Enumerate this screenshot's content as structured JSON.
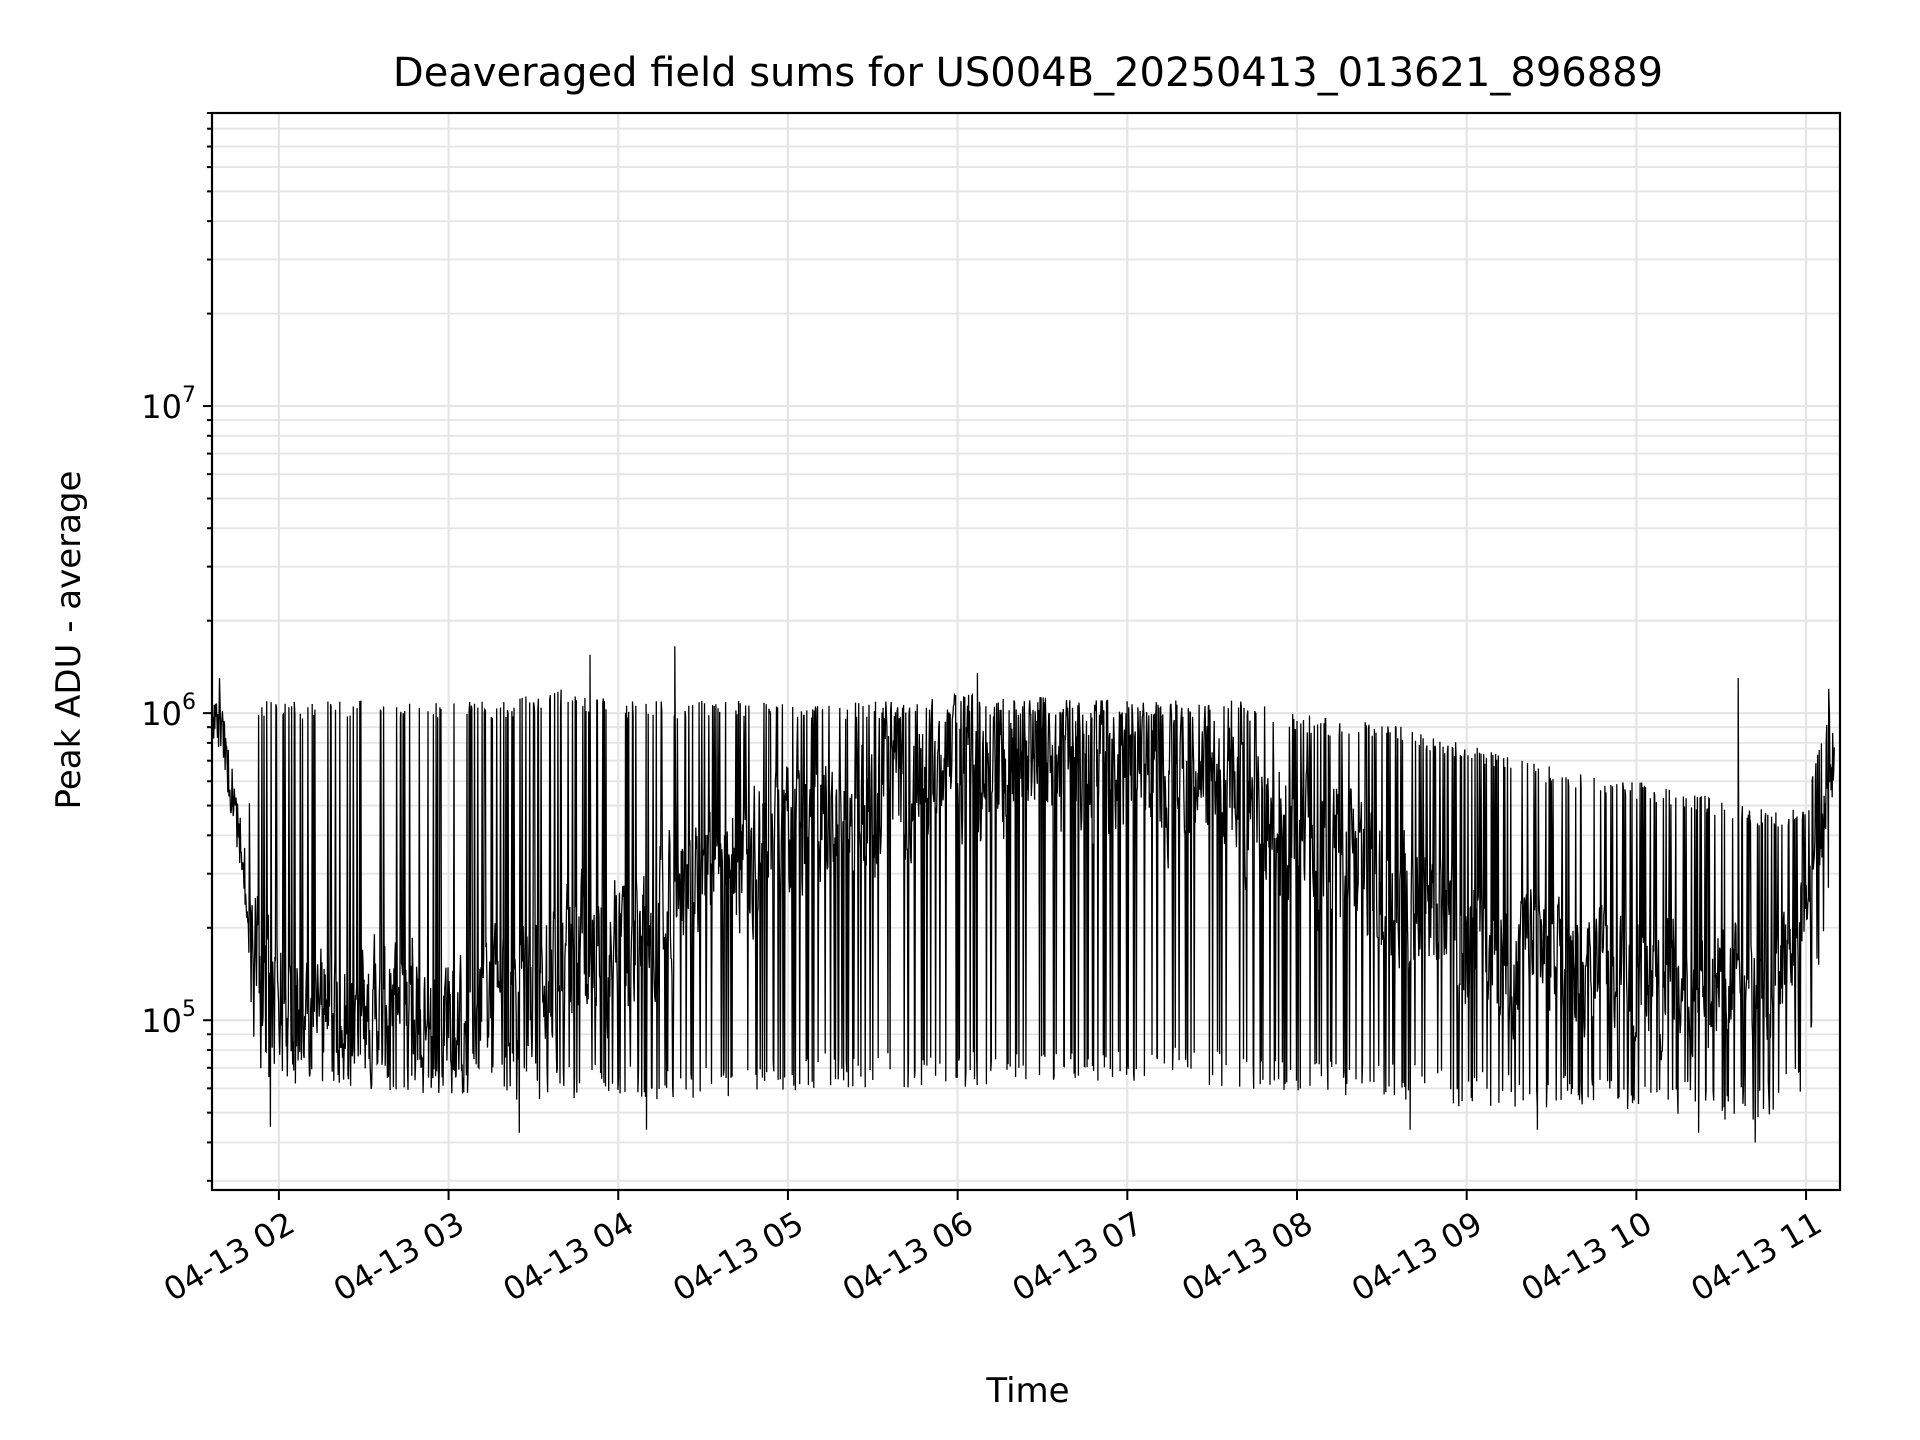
{
  "chart_data": {
    "type": "line",
    "title": "Deaveraged field sums for US004B_20250413_013621_896889",
    "xlabel": "Time",
    "ylabel": "Peak ADU - average",
    "yscale": "log",
    "ylim": [
      28000,
      90000000
    ],
    "xlim": [
      "2025-04-13 01:36:21",
      "2025-04-13 11:12:00"
    ],
    "x_ticks": [
      "2025-04-13 02:00",
      "2025-04-13 03:00",
      "2025-04-13 04:00",
      "2025-04-13 05:00",
      "2025-04-13 06:00",
      "2025-04-13 07:00",
      "2025-04-13 08:00",
      "2025-04-13 09:00",
      "2025-04-13 10:00",
      "2025-04-13 11:00"
    ],
    "x_tick_labels": [
      "04-13 02",
      "04-13 03",
      "04-13 04",
      "04-13 05",
      "04-13 06",
      "04-13 07",
      "04-13 08",
      "04-13 09",
      "04-13 10",
      "04-13 11"
    ],
    "y_ticks": [
      100000,
      1000000,
      10000000
    ],
    "y_tick_labels": [
      {
        "base": "10",
        "exp": "5"
      },
      {
        "base": "10",
        "exp": "6"
      },
      {
        "base": "10",
        "exp": "7"
      }
    ],
    "grid": true,
    "line_color": "#000000",
    "series": [
      {
        "x": [
          "2025-04-13 01:36",
          "2025-04-13 01:40",
          "2025-04-13 01:44",
          "2025-04-13 01:48",
          "2025-04-13 01:52",
          "2025-04-13 01:56",
          "2025-04-13 02:00",
          "2025-04-13 02:15",
          "2025-04-13 02:30",
          "2025-04-13 02:45",
          "2025-04-13 03:00",
          "2025-04-13 03:20",
          "2025-04-13 03:40",
          "2025-04-13 04:00",
          "2025-04-13 04:20",
          "2025-04-13 04:40",
          "2025-04-13 05:00",
          "2025-04-13 05:20",
          "2025-04-13 05:40",
          "2025-04-13 06:00",
          "2025-04-13 06:20",
          "2025-04-13 06:40",
          "2025-04-13 07:00",
          "2025-04-13 07:20",
          "2025-04-13 07:40",
          "2025-04-13 08:00",
          "2025-04-13 08:20",
          "2025-04-13 08:40",
          "2025-04-13 09:00",
          "2025-04-13 09:20",
          "2025-04-13 09:40",
          "2025-04-13 10:00",
          "2025-04-13 10:20",
          "2025-04-13 10:40",
          "2025-04-13 10:50",
          "2025-04-13 11:00",
          "2025-04-13 11:05",
          "2025-04-13 11:10"
        ],
        "base": [
          1000000,
          850000,
          500000,
          300000,
          170000,
          120000,
          110000,
          110000,
          105000,
          100000,
          100000,
          110000,
          140000,
          180000,
          250000,
          320000,
          420000,
          500000,
          600000,
          660000,
          700000,
          700000,
          680000,
          600000,
          500000,
          400000,
          300000,
          240000,
          190000,
          160000,
          150000,
          140000,
          130000,
          125000,
          140000,
          200000,
          400000,
          700000
        ],
        "high": [
          1100000,
          1000000,
          600000,
          380000,
          1100000,
          1100000,
          1100000,
          1100000,
          1100000,
          1100000,
          1100000,
          1100000,
          1200000,
          1100000,
          1100000,
          1100000,
          1100000,
          1100000,
          1100000,
          1150000,
          1150000,
          1100000,
          1100000,
          1100000,
          1100000,
          1000000,
          950000,
          900000,
          800000,
          700000,
          650000,
          600000,
          550000,
          500000,
          480000,
          500000,
          800000,
          1100000
        ],
        "low": [
          700000,
          500000,
          300000,
          180000,
          70000,
          60000,
          60000,
          60000,
          60000,
          58000,
          58000,
          55000,
          55000,
          55000,
          55000,
          56000,
          58000,
          60000,
          60000,
          60000,
          62000,
          62000,
          62000,
          62000,
          60000,
          58000,
          55000,
          55000,
          52000,
          50000,
          50000,
          50000,
          48000,
          47000,
          50000,
          60000,
          150000,
          400000
        ],
        "peaks": [
          {
            "x": "2025-04-13 01:39",
            "y": 1300000
          },
          {
            "x": "2025-04-13 03:50",
            "y": 1550000
          },
          {
            "x": "2025-04-13 04:20",
            "y": 1650000
          },
          {
            "x": "2025-04-13 06:07",
            "y": 1350000
          },
          {
            "x": "2025-04-13 10:36",
            "y": 1300000
          },
          {
            "x": "2025-04-13 11:08",
            "y": 1200000
          }
        ],
        "dips": [
          {
            "x": "2025-04-13 01:57",
            "y": 45000
          },
          {
            "x": "2025-04-13 03:25",
            "y": 43000
          },
          {
            "x": "2025-04-13 04:10",
            "y": 44000
          },
          {
            "x": "2025-04-13 08:40",
            "y": 44000
          },
          {
            "x": "2025-04-13 09:25",
            "y": 44000
          },
          {
            "x": "2025-04-13 10:22",
            "y": 43000
          },
          {
            "x": "2025-04-13 10:42",
            "y": 40000
          }
        ]
      }
    ]
  }
}
